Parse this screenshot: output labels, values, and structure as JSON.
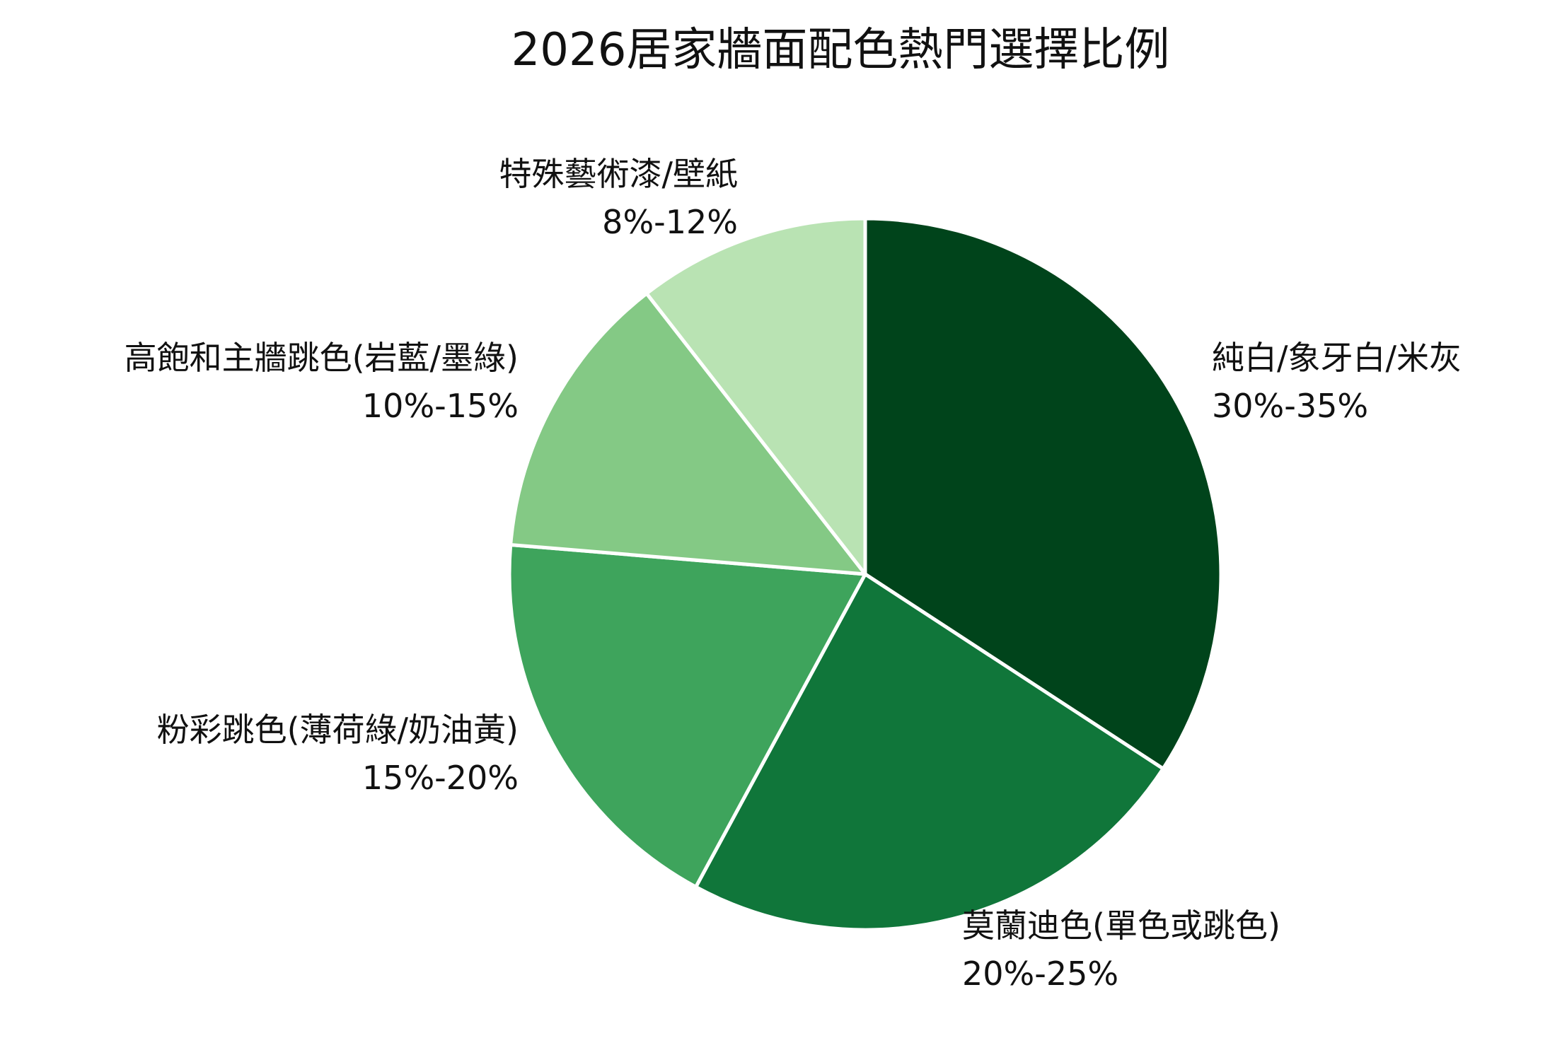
{
  "chart_data": {
    "type": "pie",
    "title": "2026居家牆面配色熱門選擇比例",
    "slices": [
      {
        "label": "純白/象牙白/米灰",
        "range_text": "30%-35%",
        "value": 32.5,
        "color": "#00441b"
      },
      {
        "label": "莫蘭迪色(單色或跳色)",
        "range_text": "20%-25%",
        "value": 22.5,
        "color": "#10763a"
      },
      {
        "label": "粉彩跳色(薄荷綠/奶油黃)",
        "range_text": "15%-20%",
        "value": 17.5,
        "color": "#3ea45c"
      },
      {
        "label": "高飽和主牆跳色(岩藍/墨綠)",
        "range_text": "10%-15%",
        "value": 12.5,
        "color": "#84c985"
      },
      {
        "label": "特殊藝術漆/壁紙",
        "range_text": "8%-12%",
        "value": 10,
        "color": "#b9e3b3"
      }
    ],
    "start_angle": "12 o'clock",
    "direction": "clockwise",
    "legend": "none",
    "slice_border_color": "#ffffff"
  }
}
